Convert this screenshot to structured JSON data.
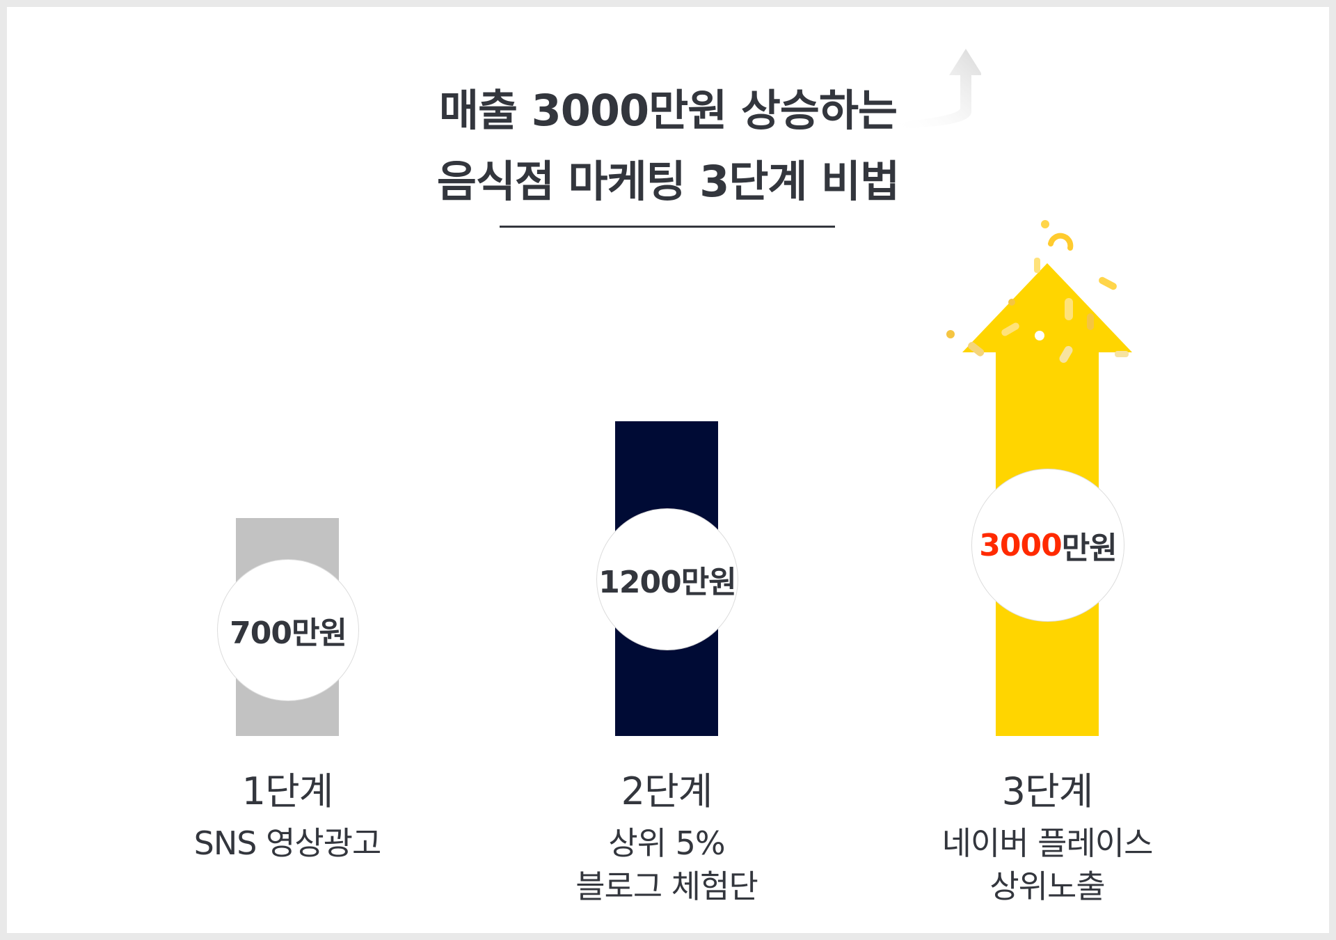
{
  "title": {
    "line1": "매출 3000만원 상승하는",
    "line2": "음식점 마케팅 3단계 비법"
  },
  "colors": {
    "stage1_bar": "#c2c2c2",
    "stage2_bar": "#000b35",
    "stage3_arrow": "#ffd500",
    "highlight": "#ff2a00",
    "text": "#33363d"
  },
  "chart_data": {
    "type": "bar",
    "categories": [
      "1단계",
      "2단계",
      "3단계"
    ],
    "values": [
      700,
      1200,
      3000
    ],
    "value_labels": [
      "700만원",
      "1200만원",
      "3000만원"
    ],
    "highlight_label": {
      "value": "3000",
      "unit": "만원"
    },
    "descriptions": [
      [
        "SNS 영상광고"
      ],
      [
        "상위 5%",
        "블로그 체험단"
      ],
      [
        "네이버 플레이스",
        "상위노출"
      ]
    ]
  }
}
